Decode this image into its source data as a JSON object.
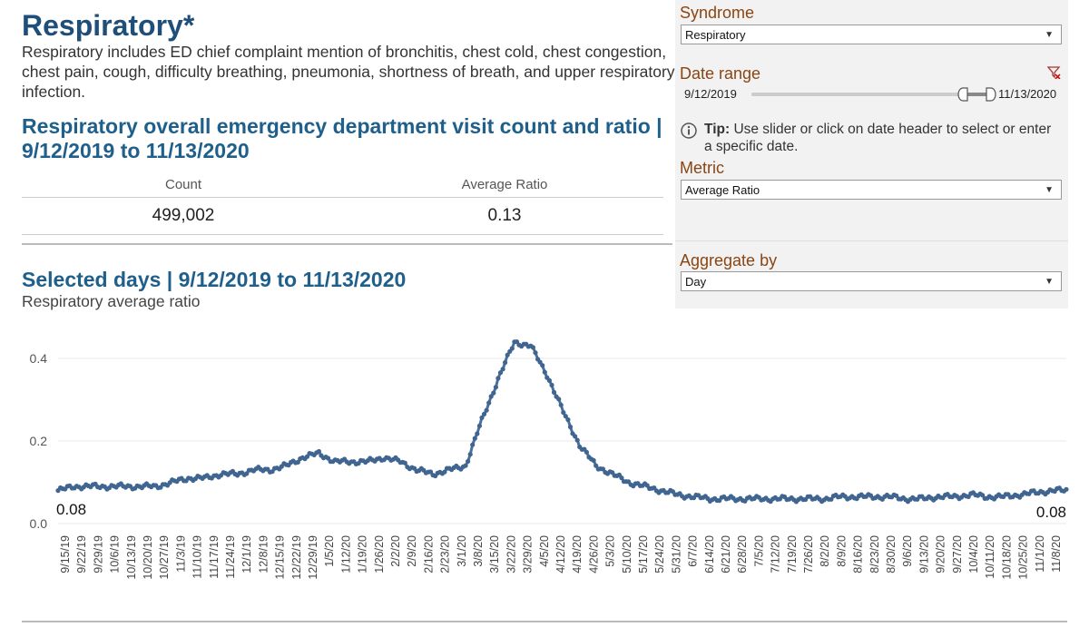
{
  "header": {
    "title": "Respiratory*",
    "description": "Respiratory includes ED chief complaint mention of bronchitis, chest cold, chest congestion, chest pain, cough, difficulty breathing, pneumonia, shortness of breath, and upper respiratory infection."
  },
  "overall": {
    "heading": "Respiratory overall emergency department visit count and ratio | 9/12/2019 to 11/13/2020",
    "count_label": "Count",
    "count_value": "499,002",
    "ratio_label": "Average Ratio",
    "ratio_value": "0.13"
  },
  "selected": {
    "heading": "Selected days | 9/12/2019 to 11/13/2020",
    "subheading": "Respiratory average ratio"
  },
  "filters": {
    "syndrome_label": "Syndrome",
    "syndrome_value": "Respiratory",
    "date_range_label": "Date range",
    "date_start": "9/12/2019",
    "date_end": "11/13/2020",
    "tip_bold": "Tip:",
    "tip_text": "Use slider or click on date header to select or enter a specific date.",
    "metric_label": "Metric",
    "metric_value": "Average Ratio",
    "aggregate_label": "Aggregate by",
    "aggregate_value": "Day",
    "slider_position": 0.9
  },
  "chart_data": {
    "type": "line",
    "title": "Respiratory average ratio",
    "xlabel": "",
    "ylabel": "",
    "ylim": [
      0,
      0.47
    ],
    "yticks": [
      0.0,
      0.2,
      0.4
    ],
    "ytick_labels": [
      "0.0",
      "0.2",
      "0.4"
    ],
    "start_label": "0.08",
    "end_label": "0.08",
    "x_tick_labels": [
      "9/15/19",
      "9/22/19",
      "9/29/19",
      "10/6/19",
      "10/13/19",
      "10/20/19",
      "10/27/19",
      "11/3/19",
      "11/10/19",
      "11/17/19",
      "11/24/19",
      "12/1/19",
      "12/8/19",
      "12/15/19",
      "12/22/19",
      "12/29/19",
      "1/5/20",
      "1/12/20",
      "1/19/20",
      "1/26/20",
      "2/2/20",
      "2/9/20",
      "2/16/20",
      "2/23/20",
      "3/1/20",
      "3/8/20",
      "3/15/20",
      "3/22/20",
      "3/29/20",
      "4/5/20",
      "4/12/20",
      "4/19/20",
      "4/26/20",
      "5/3/20",
      "5/10/20",
      "5/17/20",
      "5/24/20",
      "5/31/20",
      "6/7/20",
      "6/14/20",
      "6/21/20",
      "6/28/20",
      "7/5/20",
      "7/12/20",
      "7/19/20",
      "7/26/20",
      "8/2/20",
      "8/9/20",
      "8/16/20",
      "8/23/20",
      "8/30/20",
      "9/6/20",
      "9/13/20",
      "9/20/20",
      "9/27/20",
      "10/4/20",
      "10/11/20",
      "10/18/20",
      "10/25/20",
      "11/1/20",
      "11/8/20"
    ],
    "series": [
      {
        "name": "Respiratory average ratio",
        "weekly_values": [
          0.08,
          0.09,
          0.09,
          0.09,
          0.09,
          0.09,
          0.09,
          0.1,
          0.11,
          0.11,
          0.12,
          0.12,
          0.13,
          0.13,
          0.14,
          0.16,
          0.17,
          0.15,
          0.15,
          0.15,
          0.16,
          0.15,
          0.13,
          0.12,
          0.13,
          0.14,
          0.25,
          0.35,
          0.44,
          0.43,
          0.36,
          0.27,
          0.19,
          0.14,
          0.12,
          0.1,
          0.09,
          0.08,
          0.07,
          0.065,
          0.06,
          0.06,
          0.06,
          0.06,
          0.06,
          0.06,
          0.06,
          0.06,
          0.065,
          0.065,
          0.065,
          0.065,
          0.06,
          0.06,
          0.065,
          0.065,
          0.07,
          0.065,
          0.065,
          0.07,
          0.075,
          0.08
        ]
      }
    ]
  }
}
